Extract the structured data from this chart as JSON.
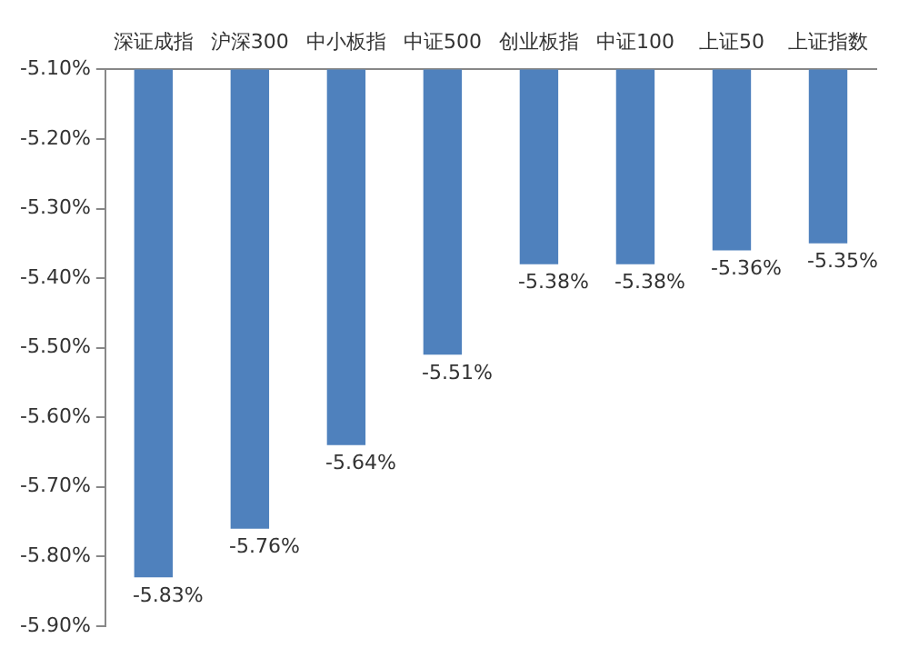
{
  "chart_data": {
    "type": "bar",
    "categories": [
      "深证成指",
      "沪深300",
      "中小板指",
      "中证500",
      "创业板指",
      "中证100",
      "上证50",
      "上证指数"
    ],
    "values": [
      -5.83,
      -5.76,
      -5.64,
      -5.51,
      -5.38,
      -5.38,
      -5.36,
      -5.35
    ],
    "value_labels": [
      "-5.83%",
      "-5.76%",
      "-5.64%",
      "-5.51%",
      "-5.38%",
      "-5.38%",
      "-5.36%",
      "-5.35%"
    ],
    "color": "#4f81bd",
    "ylim": [
      -5.9,
      -5.1
    ],
    "yticks": [
      {
        "value": -5.9,
        "label": "-5.90%"
      },
      {
        "value": -5.8,
        "label": "-5.80%"
      },
      {
        "value": -5.7,
        "label": "-5.70%"
      },
      {
        "value": -5.6,
        "label": "-5.60%"
      },
      {
        "value": -5.5,
        "label": "-5.50%"
      },
      {
        "value": -5.4,
        "label": "-5.40%"
      },
      {
        "value": -5.3,
        "label": "-5.30%"
      },
      {
        "value": -5.2,
        "label": "-5.20%"
      },
      {
        "value": -5.1,
        "label": "-5.10%"
      }
    ],
    "grid": false,
    "legend": false
  }
}
